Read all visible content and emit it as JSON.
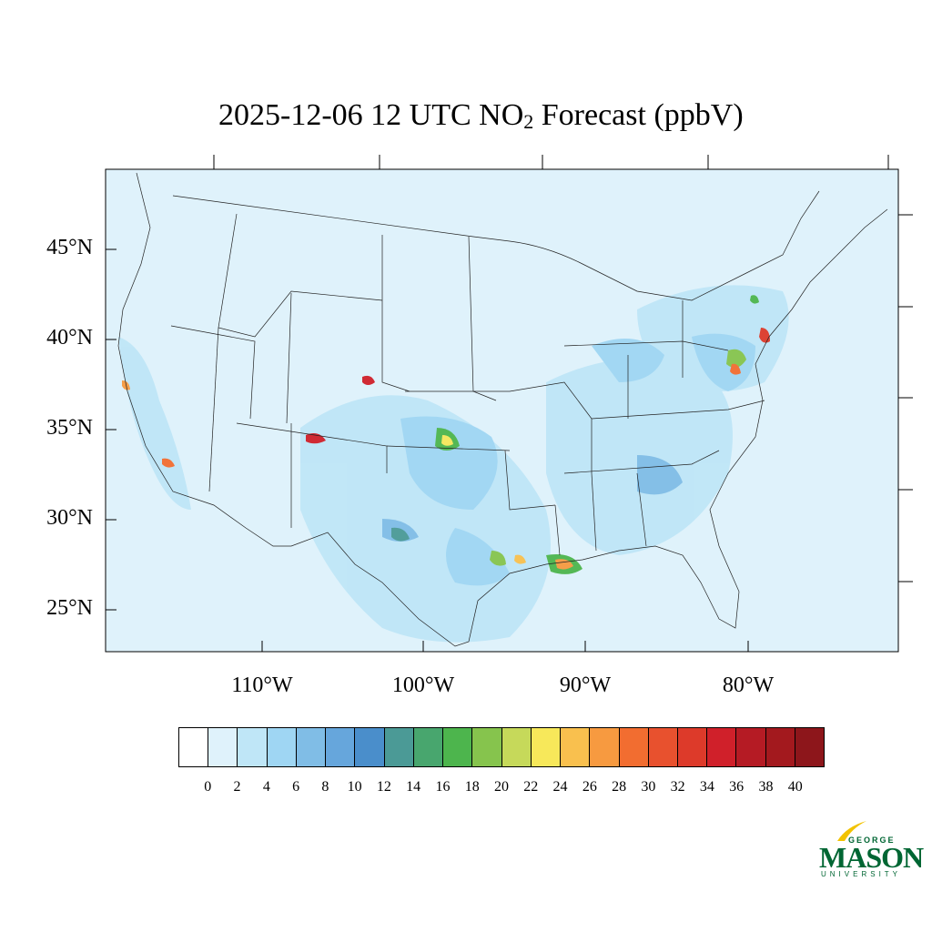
{
  "title": {
    "prefix": "2025-12-06 12 UTC NO",
    "subscript": "2",
    "suffix": " Forecast (ppbV)"
  },
  "map": {
    "lat_labels": [
      "45°N",
      "40°N",
      "35°N",
      "30°N",
      "25°N"
    ],
    "lon_labels": [
      "110°W",
      "100°W",
      "90°W",
      "80°W"
    ],
    "background_color": "#dff2fb"
  },
  "colorbar": {
    "ticks": [
      "0",
      "2",
      "4",
      "6",
      "8",
      "10",
      "12",
      "14",
      "16",
      "18",
      "20",
      "22",
      "24",
      "26",
      "28",
      "30",
      "32",
      "34",
      "36",
      "38",
      "40"
    ],
    "colors": [
      "#ffffff",
      "#dff2fb",
      "#bfe6f7",
      "#9fd6f3",
      "#80bde6",
      "#66a6dc",
      "#4a8ecb",
      "#4b9a96",
      "#48a66e",
      "#4db54d",
      "#86c44d",
      "#c6d95a",
      "#f7e85a",
      "#f9c04e",
      "#f79a40",
      "#f26d30",
      "#e8512e",
      "#dd3a2a",
      "#d0202a",
      "#b51b24",
      "#a3191e",
      "#8d161b"
    ]
  },
  "logo": {
    "line1": "GEORGE",
    "line2": "MASON",
    "line3": "UNIVERSITY"
  }
}
